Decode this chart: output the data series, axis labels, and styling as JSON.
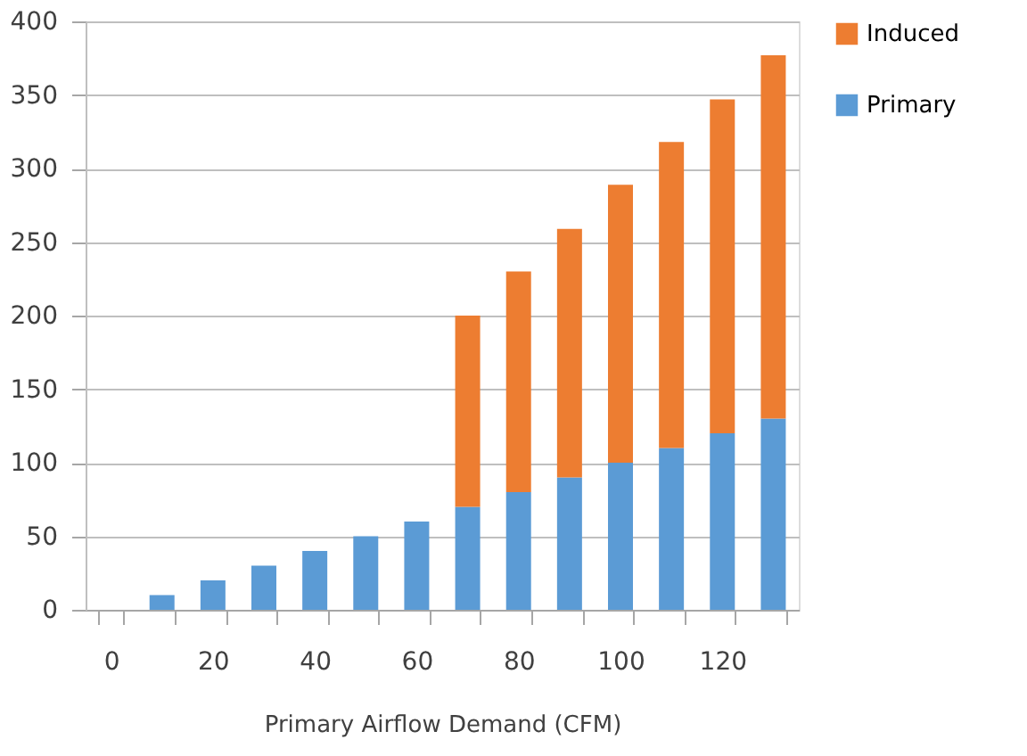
{
  "chart_data": {
    "type": "bar",
    "stacked": true,
    "xlabel": "Primary Airflow Demand (CFM)",
    "categories": [
      "0",
      null,
      "20",
      null,
      "40",
      null,
      "60",
      null,
      "80",
      null,
      "100",
      null,
      "120",
      null
    ],
    "series": [
      {
        "name": "Primary",
        "color": "#5b9bd5",
        "values": [
          0,
          10,
          20,
          30,
          40,
          50,
          60,
          70,
          80,
          90,
          100,
          110,
          120,
          130
        ]
      },
      {
        "name": "Induced",
        "color": "#ed7d31",
        "values": [
          0,
          0,
          0,
          0,
          0,
          0,
          0,
          130,
          150,
          169,
          189,
          208,
          227,
          247
        ]
      }
    ],
    "ylim": [
      0,
      400
    ],
    "yticks": [
      0,
      50,
      100,
      150,
      200,
      250,
      300,
      350,
      400
    ],
    "grid": "y",
    "legend": "right"
  }
}
